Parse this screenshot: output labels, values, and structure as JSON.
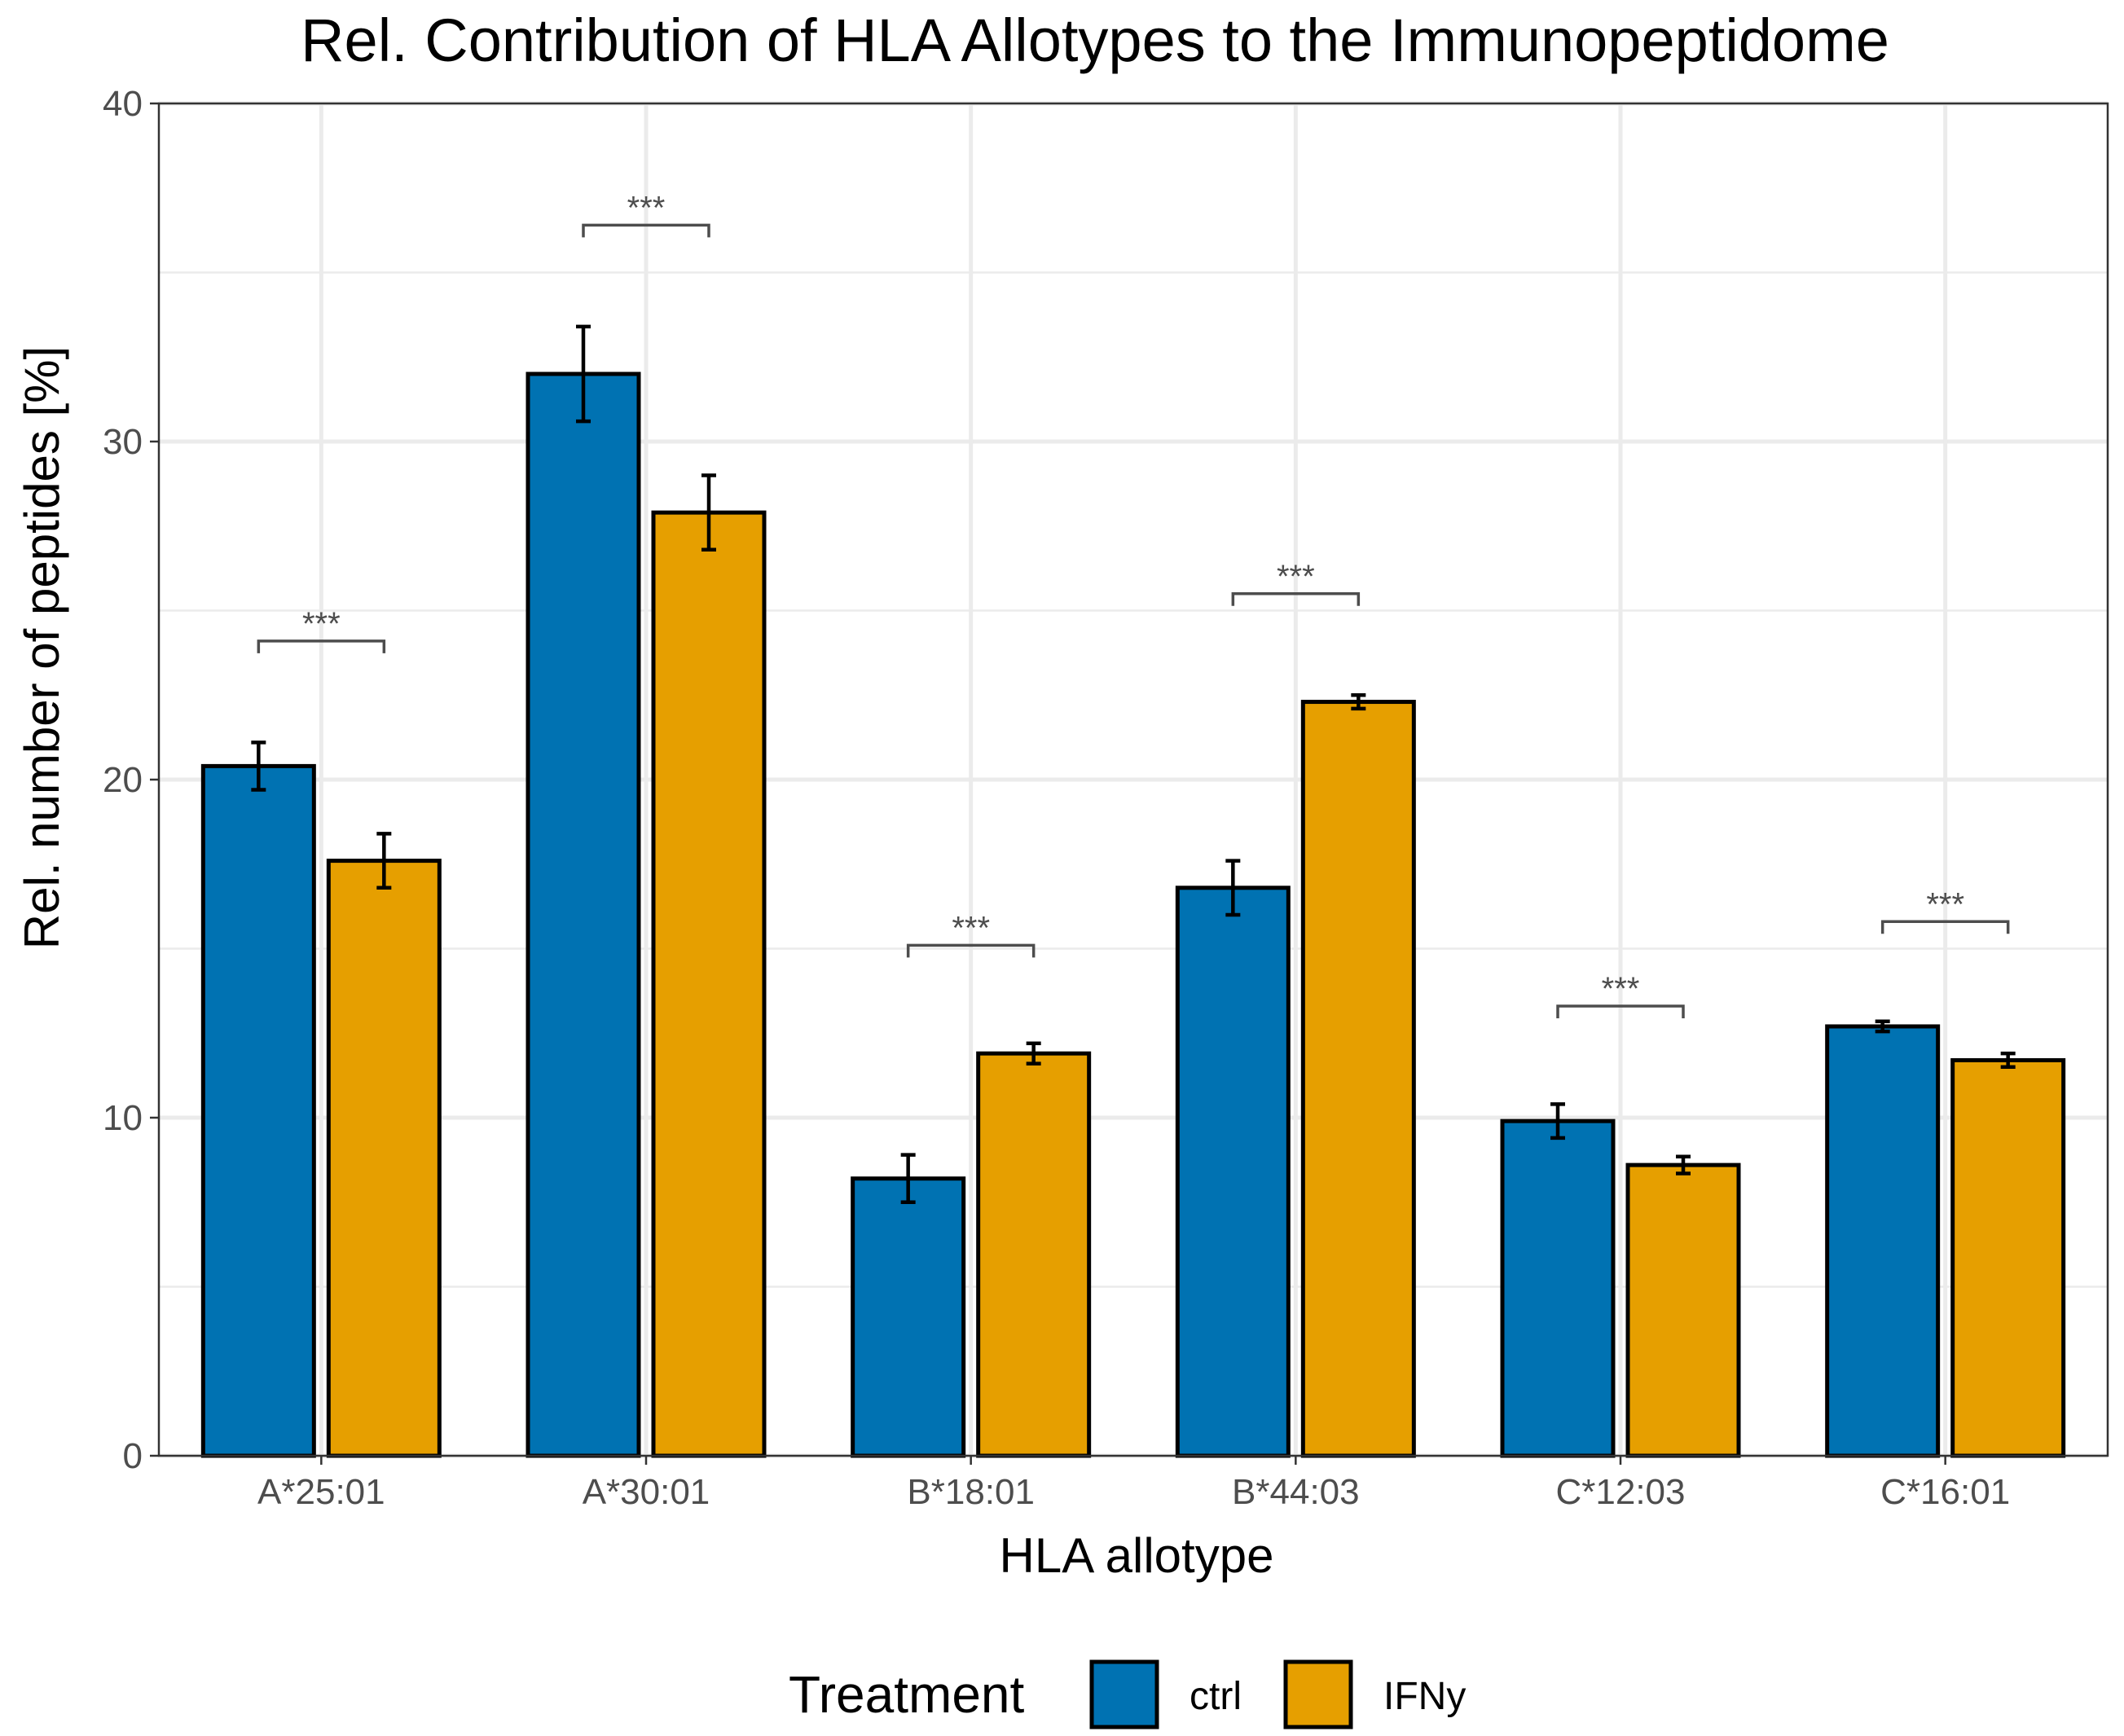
{
  "chart_data": {
    "type": "bar",
    "title": "Rel. Contribution of HLA Allotypes to the Immunopeptidome",
    "xlabel": "HLA allotype",
    "ylabel": "Rel. number of peptides [%]",
    "ylim": [
      0,
      40
    ],
    "yticks": [
      0,
      10,
      20,
      30,
      40
    ],
    "ytick_labels": [
      "0",
      "10",
      "20",
      "30",
      "40"
    ],
    "grid": true,
    "categories": [
      "A*25:01",
      "A*30:01",
      "B*18:01",
      "B*44:03",
      "C*12:03",
      "C*16:01"
    ],
    "series": [
      {
        "name": "ctrl",
        "color": "#0072B2",
        "values": [
          20.4,
          32.0,
          8.2,
          16.8,
          9.9,
          12.7
        ],
        "error": [
          0.7,
          1.4,
          0.7,
          0.8,
          0.5,
          0.15
        ]
      },
      {
        "name": "IFNy",
        "color": "#E69F00",
        "values": [
          17.6,
          27.9,
          11.9,
          22.3,
          8.6,
          11.7
        ],
        "error": [
          0.8,
          1.1,
          0.3,
          0.2,
          0.25,
          0.2
        ]
      }
    ],
    "significance": [
      {
        "category": "A*25:01",
        "label": "***",
        "y": 24.1
      },
      {
        "category": "A*30:01",
        "label": "***",
        "y": 36.4
      },
      {
        "category": "B*18:01",
        "label": "***",
        "y": 15.1
      },
      {
        "category": "B*44:03",
        "label": "***",
        "y": 25.5
      },
      {
        "category": "C*12:03",
        "label": "***",
        "y": 13.3
      },
      {
        "category": "C*16:01",
        "label": "***",
        "y": 15.8
      }
    ],
    "legend": {
      "title": "Treatment",
      "position": "bottom",
      "entries": [
        "ctrl",
        "IFNy"
      ]
    }
  }
}
